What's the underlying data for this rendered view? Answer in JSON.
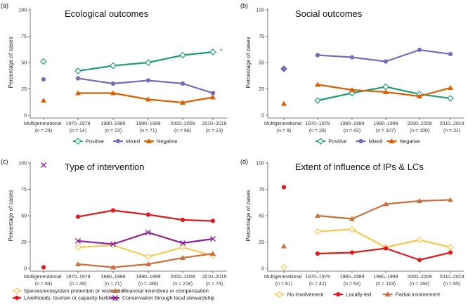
{
  "colors": {
    "green": "#1e9c78",
    "purple": "#7b68b8",
    "orange": "#d95f02",
    "yellow": "#f7c84f",
    "red": "#dc1c1c",
    "brown": "#c8703e",
    "magenta": "#8f1f97"
  },
  "chart_data": [
    {
      "id": "a",
      "panel_label": "(a)",
      "type": "line",
      "title": "Ecological outcomes",
      "ylabel": "Percentage of cases",
      "ylim": [
        0,
        100
      ],
      "yticks": [
        0,
        25,
        50,
        75,
        100
      ],
      "first_tick": "Multigenerational",
      "first_n": "(n = 29)",
      "categories": [
        "1970–1979",
        "1980–1989",
        "1990–1999",
        "2000–2009",
        "2010–2019"
      ],
      "n_labels": [
        "(n = 14)",
        "(n = 23)",
        "(n = 71)",
        "(n = 66)",
        "(n = 23)"
      ],
      "annotation": "*",
      "series": [
        {
          "name": "Positive",
          "color": "green",
          "marker": "diamond",
          "multi": 51,
          "values": [
            42,
            47,
            50,
            57,
            60
          ]
        },
        {
          "name": "Mixed",
          "color": "purple",
          "marker": "circle",
          "multi": 34,
          "values": [
            35,
            30,
            33,
            30,
            21
          ]
        },
        {
          "name": "Negative",
          "color": "orange",
          "marker": "triangle",
          "multi": 14,
          "values": [
            21,
            21,
            15,
            12,
            17
          ]
        }
      ],
      "legend": [
        "Positive",
        "Mixed",
        "Negative"
      ]
    },
    {
      "id": "b",
      "panel_label": "(b)",
      "type": "line",
      "title": "Social outcomes",
      "ylabel": "Percentage of cases",
      "ylim": [
        0,
        100
      ],
      "yticks": [
        0,
        25,
        50,
        75,
        100
      ],
      "first_tick": "Multigenerational",
      "first_n": "(n = 9)",
      "categories": [
        "1970–1979",
        "1980–1989",
        "1990–1999",
        "2000–2009",
        "2010–2019"
      ],
      "n_labels": [
        "(n = 28)",
        "(n = 43)",
        "(n = 107)",
        "(n = 100)",
        "(n = 31)"
      ],
      "series": [
        {
          "name": "Positive",
          "color": "green",
          "marker": "diamond",
          "multi": 44,
          "values": [
            14,
            21,
            27,
            20,
            16
          ]
        },
        {
          "name": "Mixed",
          "color": "purple",
          "marker": "circle",
          "multi": 44,
          "values": [
            57,
            55,
            51,
            62,
            58
          ]
        },
        {
          "name": "Negative",
          "color": "orange",
          "marker": "triangle",
          "multi": 11,
          "values": [
            29,
            24,
            22,
            18,
            26
          ]
        }
      ],
      "legend": [
        "Positive",
        "Mixed",
        "Negative"
      ]
    },
    {
      "id": "c",
      "panel_label": "(c)",
      "type": "line",
      "title": "Type of intervention",
      "ylabel": "Percentage of cases",
      "ylim": [
        0,
        100
      ],
      "yticks": [
        0,
        25,
        50,
        75,
        100
      ],
      "first_tick": "Multigenerational",
      "first_n": "(n = 64)",
      "categories": [
        "1970–1979",
        "1980–1989",
        "1990–1999",
        "2000–2009",
        "2010–2019"
      ],
      "n_labels": [
        "(n = 49)",
        "(n = 71)",
        "(n = 186)",
        "(n = 218)",
        "(n = 74)"
      ],
      "series": [
        {
          "name": "Species/ecosystem protection or restoration",
          "color": "yellow",
          "marker": "diamond",
          "multi": null,
          "values": [
            20,
            22,
            11,
            20,
            12
          ]
        },
        {
          "name": "Financial incentives or compensation",
          "color": "brown",
          "marker": "triangle",
          "multi": null,
          "values": [
            4,
            1,
            4,
            10,
            14
          ]
        },
        {
          "name": "Livelihoods, tourism or capacity building",
          "color": "red",
          "marker": "circle",
          "multi": 1,
          "values": [
            49,
            55,
            51,
            46,
            45
          ]
        },
        {
          "name": "Conservation through local stewardship",
          "color": "magenta",
          "marker": "cross",
          "multi": 98,
          "values": [
            26,
            23,
            34,
            24,
            28
          ]
        }
      ],
      "legend": [
        "Species/ecosystem protection or restoration",
        "Financial incentives or compensation",
        "Livelihoods, tourism or capacity building",
        "Conservation through local stewardship"
      ]
    },
    {
      "id": "d",
      "panel_label": "(d)",
      "type": "line",
      "title": "Extent of influence of IPs & LCs",
      "ylabel": "Percentage of cases",
      "ylim": [
        0,
        100
      ],
      "yticks": [
        0,
        25,
        50,
        75,
        100
      ],
      "first_tick": "Multigenerational",
      "first_n": "(n = 61)",
      "categories": [
        "1970–1979",
        "1980–1989",
        "1990–1999",
        "2000–2009",
        "2010–2019"
      ],
      "n_labels": [
        "(n = 42)",
        "(n = 64)",
        "(n = 163)",
        "(n = 194)",
        "(n = 65)"
      ],
      "series": [
        {
          "name": "No involvement",
          "color": "yellow",
          "marker": "diamond",
          "multi": 1,
          "values": [
            35,
            37,
            20,
            27,
            20
          ]
        },
        {
          "name": "Locally-led",
          "color": "red",
          "marker": "circle",
          "multi": 77,
          "values": [
            14,
            15,
            19,
            8,
            15
          ]
        },
        {
          "name": "Partial involvement",
          "color": "brown",
          "marker": "triangle",
          "multi": 21,
          "values": [
            50,
            47,
            61,
            64,
            65
          ]
        }
      ],
      "legend": [
        "No involvement",
        "Locally-led",
        "Partial involvement"
      ]
    }
  ]
}
